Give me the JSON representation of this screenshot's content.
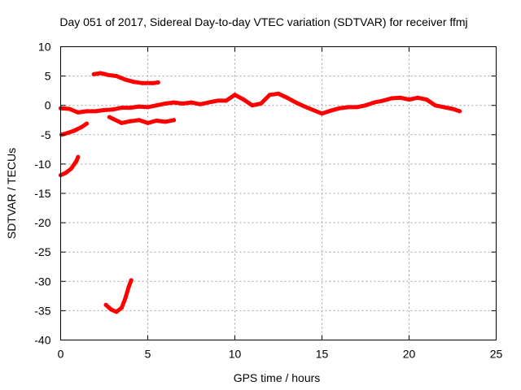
{
  "chart_data": {
    "type": "scatter",
    "title": "Day 051 of 2017, Sidereal Day-to-day VTEC variation (SDTVAR) for receiver ffmj",
    "xlabel": "GPS time / hours",
    "ylabel": "SDTVAR / TECUs",
    "xlim": [
      0,
      25
    ],
    "ylim": [
      -40,
      10
    ],
    "xticks": [
      0,
      5,
      10,
      15,
      20,
      25
    ],
    "yticks": [
      10,
      5,
      0,
      -5,
      -10,
      -15,
      -20,
      -25,
      -30,
      -35,
      -40
    ],
    "grid": true,
    "legend": "none",
    "color": "#ff0000",
    "series": [
      {
        "name": "main track",
        "points": [
          [
            0.0,
            -0.5
          ],
          [
            0.5,
            -0.6
          ],
          [
            1.0,
            -1.2
          ],
          [
            1.5,
            -1.0
          ],
          [
            2.0,
            -1.0
          ],
          [
            2.5,
            -0.8
          ],
          [
            3.0,
            -0.7
          ],
          [
            3.5,
            -0.4
          ],
          [
            4.0,
            -0.4
          ],
          [
            4.5,
            -0.2
          ],
          [
            5.0,
            -0.3
          ],
          [
            5.5,
            0.0
          ],
          [
            6.0,
            0.3
          ],
          [
            6.5,
            0.5
          ],
          [
            7.0,
            0.3
          ],
          [
            7.5,
            0.5
          ],
          [
            8.0,
            0.2
          ],
          [
            8.5,
            0.5
          ],
          [
            9.0,
            0.8
          ],
          [
            9.5,
            0.8
          ],
          [
            10.0,
            1.8
          ],
          [
            10.5,
            1.0
          ],
          [
            11.0,
            0.0
          ],
          [
            11.5,
            0.3
          ],
          [
            12.0,
            1.8
          ],
          [
            12.5,
            2.0
          ],
          [
            13.0,
            1.3
          ],
          [
            13.5,
            0.5
          ],
          [
            14.0,
            -0.2
          ],
          [
            14.5,
            -0.8
          ],
          [
            15.0,
            -1.4
          ],
          [
            15.5,
            -0.9
          ],
          [
            16.0,
            -0.5
          ],
          [
            16.5,
            -0.3
          ],
          [
            17.0,
            -0.3
          ],
          [
            17.5,
            0.0
          ],
          [
            18.0,
            0.5
          ],
          [
            18.5,
            0.8
          ],
          [
            19.0,
            1.2
          ],
          [
            19.5,
            1.3
          ],
          [
            20.0,
            1.0
          ],
          [
            20.5,
            1.3
          ],
          [
            21.0,
            1.0
          ],
          [
            21.5,
            0.0
          ],
          [
            22.0,
            -0.3
          ],
          [
            22.5,
            -0.6
          ],
          [
            22.9,
            -1.0
          ]
        ]
      },
      {
        "name": "lower arc",
        "points": [
          [
            2.8,
            -2.0
          ],
          [
            3.5,
            -3.0
          ],
          [
            4.0,
            -2.7
          ],
          [
            4.5,
            -2.5
          ],
          [
            5.0,
            -3.0
          ],
          [
            5.5,
            -2.6
          ],
          [
            6.0,
            -2.8
          ],
          [
            6.5,
            -2.5
          ]
        ]
      },
      {
        "name": "upper segment",
        "points": [
          [
            1.9,
            5.3
          ],
          [
            2.3,
            5.5
          ],
          [
            2.7,
            5.2
          ],
          [
            3.2,
            5.0
          ],
          [
            3.7,
            4.4
          ],
          [
            4.2,
            4.0
          ],
          [
            4.7,
            3.8
          ],
          [
            5.3,
            3.8
          ],
          [
            5.6,
            3.9
          ]
        ]
      },
      {
        "name": "early segment",
        "points": [
          [
            0.05,
            -5.0
          ],
          [
            0.4,
            -4.7
          ],
          [
            0.8,
            -4.3
          ],
          [
            1.2,
            -3.7
          ],
          [
            1.5,
            -3.1
          ]
        ]
      },
      {
        "name": "short curve",
        "points": [
          [
            0.0,
            -11.9
          ],
          [
            0.3,
            -11.5
          ],
          [
            0.6,
            -10.8
          ],
          [
            0.9,
            -9.5
          ],
          [
            1.0,
            -8.8
          ]
        ]
      },
      {
        "name": "deep dip",
        "points": [
          [
            2.6,
            -34.0
          ],
          [
            2.9,
            -34.8
          ],
          [
            3.2,
            -35.2
          ],
          [
            3.5,
            -34.5
          ],
          [
            3.7,
            -33.0
          ],
          [
            3.9,
            -31.0
          ],
          [
            4.05,
            -29.8
          ]
        ]
      }
    ]
  }
}
